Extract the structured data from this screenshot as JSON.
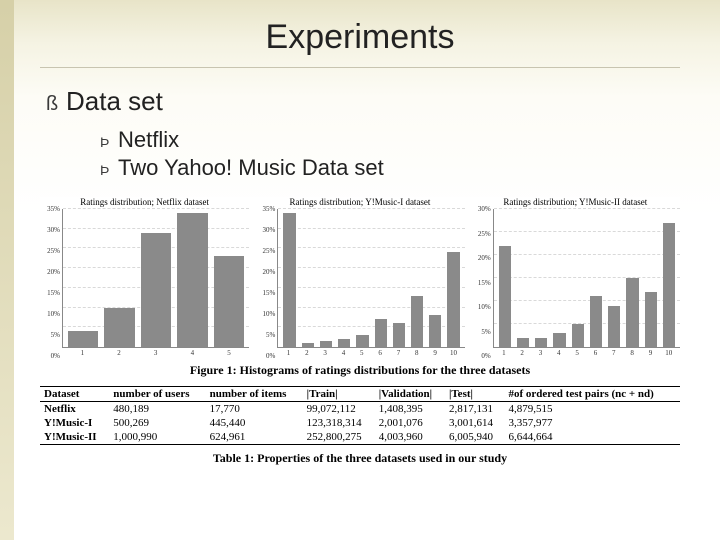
{
  "title": "Experiments",
  "bullets": {
    "level1": "Data set",
    "level2": [
      "Netflix",
      "Two Yahoo! Music Data set"
    ],
    "glyph1": "ß",
    "glyph2": "Þ"
  },
  "figure_caption": "Figure 1: Histograms of ratings distributions for the three datasets",
  "table_caption": "Table 1: Properties of the three datasets used in our study",
  "chart_style": {
    "bar_color": "#8a8a8a",
    "grid_color": "#d9d9d9",
    "axis_color": "#888888",
    "background": "#ffffff",
    "title_fontsize": 9,
    "tick_fontsize": 7
  },
  "charts": [
    {
      "title": "Ratings distribution; Netflix dataset",
      "ylim": [
        0,
        35
      ],
      "ytick_step": 5,
      "categories": [
        "1",
        "2",
        "3",
        "4",
        "5"
      ],
      "values": [
        4,
        10,
        29,
        34,
        23
      ]
    },
    {
      "title": "Ratings distribution; Y!Music-I dataset",
      "ylim": [
        0,
        35
      ],
      "ytick_step": 5,
      "categories": [
        "1",
        "2",
        "3",
        "4",
        "5",
        "6",
        "7",
        "8",
        "9",
        "10"
      ],
      "values": [
        34,
        1,
        1.5,
        2,
        3,
        7,
        6,
        13,
        8,
        24
      ]
    },
    {
      "title": "Ratings distribution; Y!Music-II dataset",
      "ylim": [
        0,
        30
      ],
      "ytick_step": 5,
      "categories": [
        "1",
        "2",
        "3",
        "4",
        "5",
        "6",
        "7",
        "8",
        "9",
        "10"
      ],
      "values": [
        22,
        2,
        2,
        3,
        5,
        11,
        9,
        15,
        12,
        27
      ]
    }
  ],
  "table": {
    "columns": [
      "Dataset",
      "number of users",
      "number of items",
      "|Train|",
      "|Validation|",
      "|Test|",
      "#of ordered test pairs (nc + nd)"
    ],
    "rows": [
      [
        "Netflix",
        "480,189",
        "17,770",
        "99,072,112",
        "1,408,395",
        "2,817,131",
        "4,879,515"
      ],
      [
        "Y!Music-I",
        "500,269",
        "445,440",
        "123,318,314",
        "2,001,076",
        "3,001,614",
        "3,357,977"
      ],
      [
        "Y!Music-II",
        "1,000,990",
        "624,961",
        "252,800,275",
        "4,003,960",
        "6,005,940",
        "6,644,664"
      ]
    ],
    "bold_first_col": true
  }
}
